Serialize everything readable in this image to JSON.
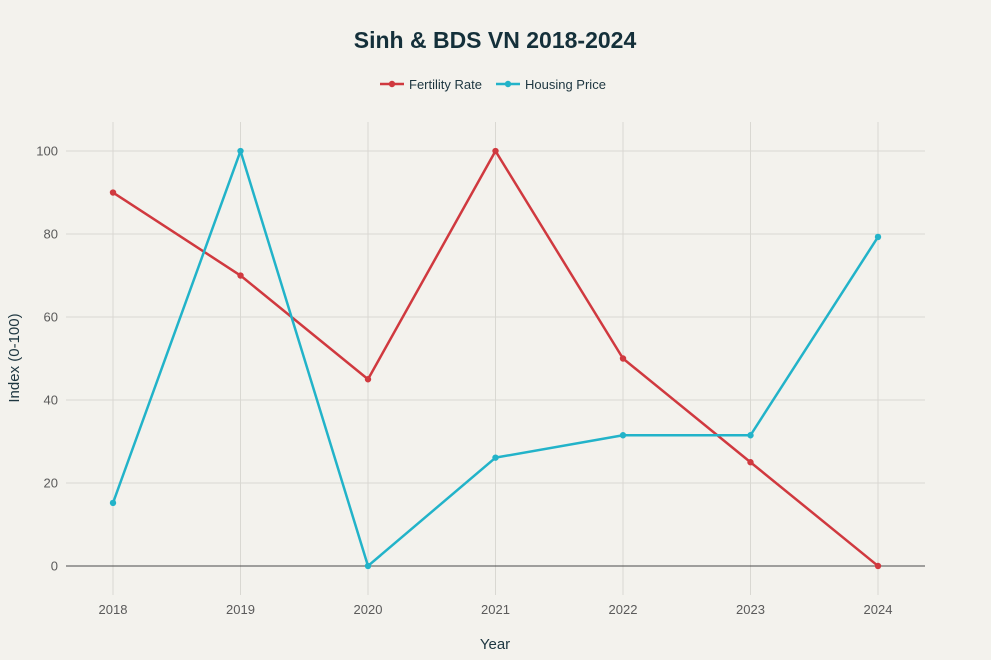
{
  "chart_data": {
    "type": "line",
    "title": "Sinh & BDS VN 2018-2024",
    "xlabel": "Year",
    "ylabel": "Index (0-100)",
    "x": [
      "2018",
      "2019",
      "2020",
      "2021",
      "2022",
      "2023",
      "2024"
    ],
    "ylim": [
      -7,
      107
    ],
    "yticks": [
      0,
      20,
      40,
      60,
      80,
      100
    ],
    "grid": true,
    "legend_position": "top-center",
    "series": [
      {
        "name": "Fertility Rate",
        "color": "#d0393f",
        "values": [
          90,
          70,
          45,
          100,
          50,
          25,
          0
        ]
      },
      {
        "name": "Housing Price",
        "color": "#22b3c9",
        "values": [
          15.2,
          100,
          0,
          26.1,
          31.5,
          31.5,
          79.3
        ]
      }
    ]
  }
}
